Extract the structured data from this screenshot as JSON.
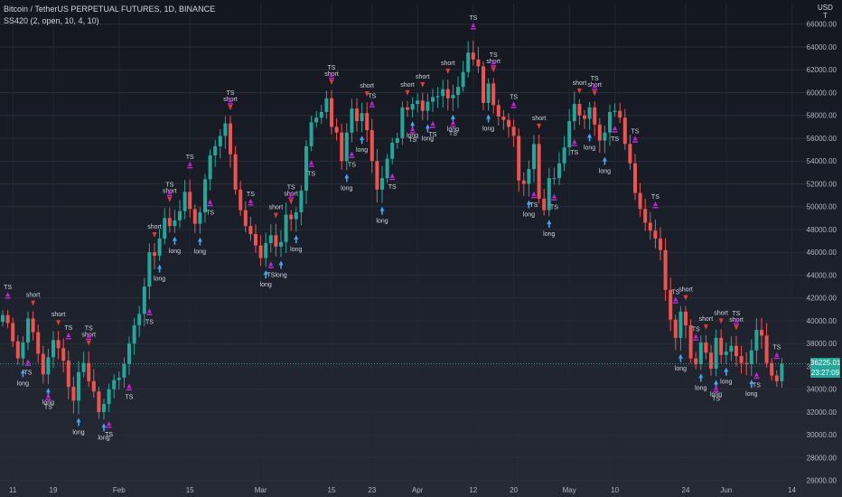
{
  "header": {
    "symbol": "Bitcoin / TetherUS PERPETUAL FUTURES, 1D, BINANCE",
    "indicator": "SS420 (2, open, 10, 4, 10)"
  },
  "currency": {
    "line1": "USD",
    "line2": "T"
  },
  "last_price": {
    "value": "36225.01",
    "countdown": "23:27:09"
  },
  "colors": {
    "up": "#26a69a",
    "down": "#ef5350",
    "short_arrow": "#e53935",
    "long_arrow": "#42a5f5",
    "ts_marker": "#c026d3",
    "label_text": "#d1d4dc",
    "price_line": "#26a69a"
  },
  "chart_data": {
    "type": "candlestick",
    "title": "Bitcoin / TetherUS PERPETUAL FUTURES, 1D, BINANCE",
    "ylim": [
      25500,
      67800
    ],
    "y_ticks": [
      "66000.00",
      "64000.00",
      "62000.00",
      "60000.00",
      "58000.00",
      "56000.00",
      "54000.00",
      "52000.00",
      "50000.00",
      "48000.00",
      "46000.00",
      "44000.00",
      "42000.00",
      "40000.00",
      "38000.00",
      "36000.00",
      "34000.00",
      "32000.00",
      "30000.00",
      "28000.00",
      "26000.00"
    ],
    "x_ticks": [
      {
        "label": "11",
        "index": 2
      },
      {
        "label": "19",
        "index": 10
      },
      {
        "label": "Feb",
        "index": 23
      },
      {
        "label": "15",
        "index": 37
      },
      {
        "label": "Mar",
        "index": 51
      },
      {
        "label": "15",
        "index": 65
      },
      {
        "label": "23",
        "index": 73
      },
      {
        "label": "Apr",
        "index": 82
      },
      {
        "label": "12",
        "index": 93
      },
      {
        "label": "20",
        "index": 101
      },
      {
        "label": "May",
        "index": 112
      },
      {
        "label": "10",
        "index": 121
      },
      {
        "label": "24",
        "index": 135
      },
      {
        "label": "Jun",
        "index": 143
      },
      {
        "label": "14",
        "index": 156
      }
    ],
    "closes": [
      40500,
      39800,
      38200,
      36700,
      38100,
      40200,
      39000,
      37100,
      35300,
      36800,
      38300,
      37600,
      36500,
      34200,
      33000,
      35500,
      36300,
      34700,
      33800,
      32000,
      32700,
      34000,
      34800,
      35000,
      36200,
      38000,
      39600,
      40600,
      43000,
      46000,
      45700,
      47200,
      49000,
      48300,
      48800,
      49600,
      51300,
      49800,
      48500,
      49500,
      52400,
      54500,
      55300,
      56200,
      57300,
      54600,
      51500,
      49700,
      48300,
      47600,
      46600,
      45500,
      46800,
      47500,
      46500,
      46900,
      49300,
      48900,
      49500,
      51400,
      55300,
      57400,
      57800,
      58300,
      59500,
      57000,
      56500,
      54000,
      56500,
      58600,
      57500,
      58200,
      56700,
      54000,
      51500,
      52500,
      54200,
      55600,
      56000,
      58700,
      58500,
      59000,
      59300,
      58400,
      59200,
      59600,
      59700,
      60300,
      59500,
      59800,
      60500,
      61800,
      63500,
      62900,
      62300,
      59100,
      60800,
      58900,
      57900,
      57600,
      57000,
      56200,
      52300,
      52000,
      53300,
      55500,
      50700,
      49700,
      52500,
      52500,
      53800,
      55200,
      57500,
      59000,
      58000,
      57700,
      58700,
      57200,
      55800,
      56500,
      58300,
      58400,
      57800,
      55500,
      53800,
      51200,
      49800,
      48600,
      47900,
      47200,
      46200,
      42700,
      40100,
      38500,
      40800,
      39600,
      36700,
      36200,
      38100,
      37200,
      35800,
      38500,
      37000,
      37300,
      37800,
      36900,
      36300,
      36200,
      37400,
      39200,
      38700,
      36300,
      35200,
      34700,
      36225
    ],
    "annotations": {
      "short": [
        "short",
        "short",
        "short",
        "short",
        "short",
        "short",
        "short",
        "short",
        "short",
        "short",
        "short",
        "short",
        "short",
        "short",
        "short",
        "short",
        "short",
        "short",
        "short",
        "short",
        "short"
      ],
      "long": [
        "long",
        "long",
        "long",
        "long",
        "long",
        "long",
        "long",
        "long",
        "long",
        "long",
        "long",
        "long",
        "long",
        "long",
        "long",
        "long",
        "long",
        "long",
        "long",
        "long",
        "long",
        "long",
        "long",
        "long",
        "long",
        "long"
      ],
      "ts": "TS"
    }
  }
}
